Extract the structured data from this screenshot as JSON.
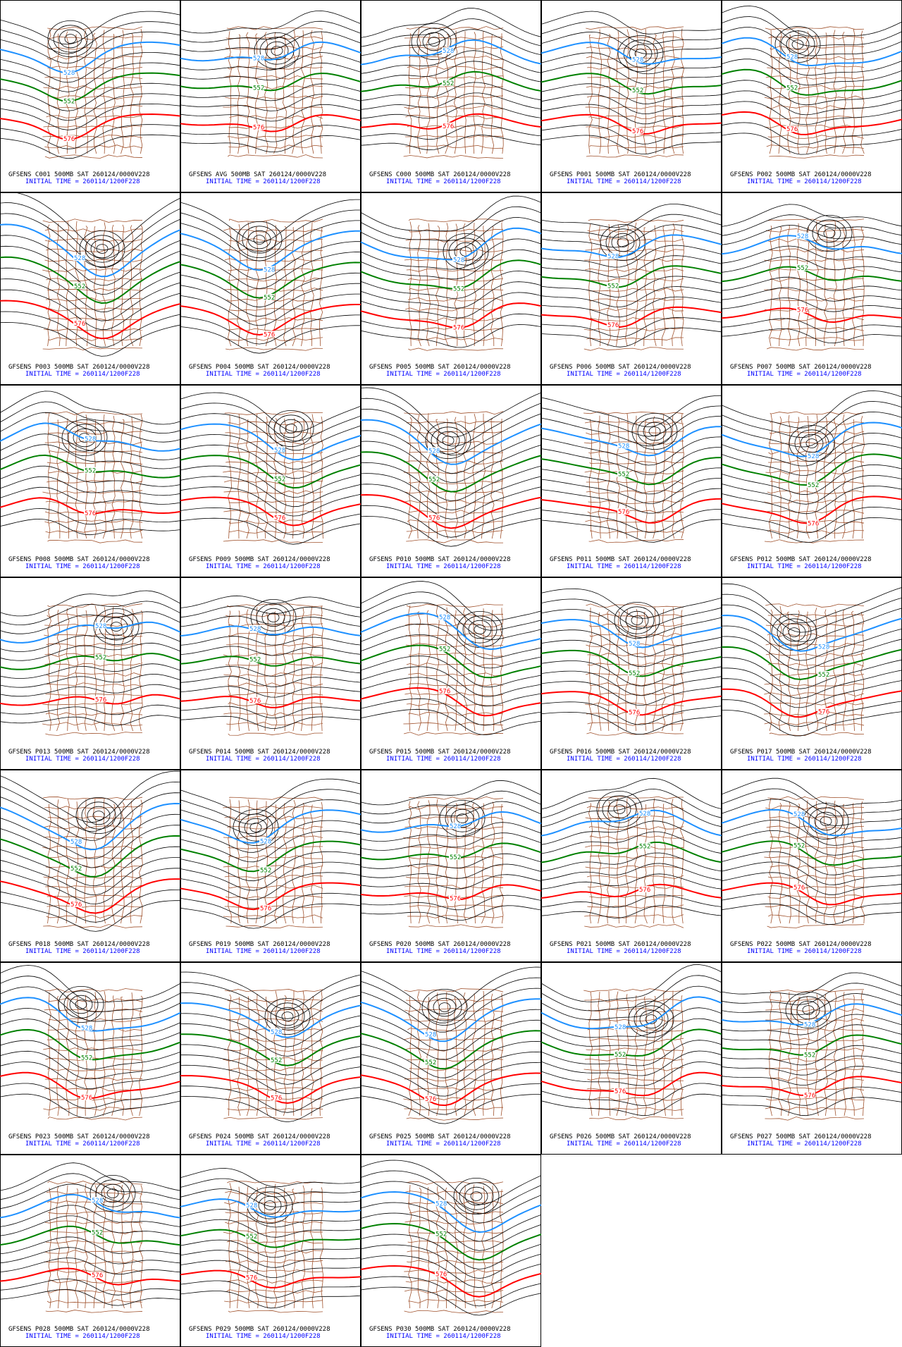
{
  "panels": [
    {
      "title": "GFSENS C001 500MB SAT 260124/0000V228",
      "init": "INITIAL TIME = 260114/1200F228",
      "contours": [
        "528",
        "552",
        "576"
      ]
    },
    {
      "title": "GFSENS AVG 500MB SAT 260124/0000V228",
      "init": "INITIAL TIME = 260114/1200F228",
      "contours": [
        "528",
        "552",
        "576"
      ]
    },
    {
      "title": "GFSENS C000 500MB SAT 260124/0000V228",
      "init": "INITIAL TIME = 260114/1200F228",
      "contours": [
        "528",
        "552",
        "576"
      ]
    },
    {
      "title": "GFSENS P001 500MB SAT 260124/0000V228",
      "init": "INITIAL TIME = 260114/1200F228",
      "contours": [
        "528",
        "552",
        "576"
      ]
    },
    {
      "title": "GFSENS P002 500MB SAT 260124/0000V228",
      "init": "INITIAL TIME = 260114/1200F228",
      "contours": [
        "528",
        "552",
        "576"
      ]
    },
    {
      "title": "GFSENS P003 500MB SAT 260124/0000V228",
      "init": "INITIAL TIME = 260114/1200F228",
      "contours": [
        "528",
        "552",
        "576"
      ]
    },
    {
      "title": "GFSENS P004 500MB SAT 260124/0000V228",
      "init": "INITIAL TIME = 260114/1200F228",
      "contours": [
        "528",
        "552",
        "576"
      ]
    },
    {
      "title": "GFSENS P005 500MB SAT 260124/0000V228",
      "init": "INITIAL TIME = 260114/1200F228",
      "contours": [
        "528",
        "552",
        "576"
      ]
    },
    {
      "title": "GFSENS P006 500MB SAT 260124/0000V228",
      "init": "INITIAL TIME = 260114/1200F228",
      "contours": [
        "528",
        "552",
        "576"
      ]
    },
    {
      "title": "GFSENS P007 500MB SAT 260124/0000V228",
      "init": "INITIAL TIME = 260114/1200F228",
      "contours": [
        "528",
        "552",
        "576"
      ]
    },
    {
      "title": "GFSENS P008 500MB SAT 260124/0000V228",
      "init": "INITIAL TIME = 260114/1200F228",
      "contours": [
        "528",
        "552",
        "576"
      ]
    },
    {
      "title": "GFSENS P009 500MB SAT 260124/0000V228",
      "init": "INITIAL TIME = 260114/1200F228",
      "contours": [
        "528",
        "552",
        "576"
      ]
    },
    {
      "title": "GFSENS P010 500MB SAT 260124/0000V228",
      "init": "INITIAL TIME = 260114/1200F228",
      "contours": [
        "528",
        "552",
        "576"
      ]
    },
    {
      "title": "GFSENS P011 500MB SAT 260124/0000V228",
      "init": "INITIAL TIME = 260114/1200F228",
      "contours": [
        "528",
        "552",
        "576"
      ]
    },
    {
      "title": "GFSENS P012 500MB SAT 260124/0000V228",
      "init": "INITIAL TIME = 260114/1200F228",
      "contours": [
        "528",
        "552",
        "576"
      ]
    },
    {
      "title": "GFSENS P013 500MB SAT 260124/0000V228",
      "init": "INITIAL TIME = 260114/1200F228",
      "contours": [
        "528",
        "552",
        "576"
      ]
    },
    {
      "title": "GFSENS P014 500MB SAT 260124/0000V228",
      "init": "INITIAL TIME = 260114/1200F228",
      "contours": [
        "528",
        "552",
        "576"
      ]
    },
    {
      "title": "GFSENS P015 500MB SAT 260124/0000V228",
      "init": "INITIAL TIME = 260114/1200F228",
      "contours": [
        "528",
        "552",
        "576"
      ]
    },
    {
      "title": "GFSENS P016 500MB SAT 260124/0000V228",
      "init": "INITIAL TIME = 260114/1200F228",
      "contours": [
        "528",
        "552",
        "576"
      ]
    },
    {
      "title": "GFSENS P017 500MB SAT 260124/0000V228",
      "init": "INITIAL TIME = 260114/1200F228",
      "contours": [
        "528",
        "552",
        "576"
      ]
    },
    {
      "title": "GFSENS P018 500MB SAT 260124/0000V228",
      "init": "INITIAL TIME = 260114/1200F228",
      "contours": [
        "528",
        "552",
        "576"
      ]
    },
    {
      "title": "GFSENS P019 500MB SAT 260124/0000V228",
      "init": "INITIAL TIME = 260114/1200F228",
      "contours": [
        "528",
        "552",
        "576"
      ]
    },
    {
      "title": "GFSENS P020 500MB SAT 260124/0000V228",
      "init": "INITIAL TIME = 260114/1200F228",
      "contours": [
        "528",
        "552",
        "576"
      ]
    },
    {
      "title": "GFSENS P021 500MB SAT 260124/0000V228",
      "init": "INITIAL TIME = 260114/1200F228",
      "contours": [
        "528",
        "552",
        "576"
      ]
    },
    {
      "title": "GFSENS P022 500MB SAT 260124/0000V228",
      "init": "INITIAL TIME = 260114/1200F228",
      "contours": [
        "528",
        "552",
        "576"
      ]
    },
    {
      "title": "GFSENS P023 500MB SAT 260124/0000V228",
      "init": "INITIAL TIME = 260114/1200F228",
      "contours": [
        "528",
        "552",
        "576"
      ]
    },
    {
      "title": "GFSENS P024 500MB SAT 260124/0000V228",
      "init": "INITIAL TIME = 260114/1200F228",
      "contours": [
        "528",
        "552",
        "576"
      ]
    },
    {
      "title": "GFSENS P025 500MB SAT 260124/0000V228",
      "init": "INITIAL TIME = 260114/1200F228",
      "contours": [
        "528",
        "552",
        "576"
      ]
    },
    {
      "title": "GFSENS P026 500MB SAT 260124/0000V228",
      "init": "INITIAL TIME = 260114/1200F228",
      "contours": [
        "528",
        "552",
        "576"
      ]
    },
    {
      "title": "GFSENS P027 500MB SAT 260124/0000V228",
      "init": "INITIAL TIME = 260114/1200F228",
      "contours": [
        "528",
        "552",
        "576"
      ]
    },
    {
      "title": "GFSENS P028 500MB SAT 260124/0000V228",
      "init": "INITIAL TIME = 260114/1200F228",
      "contours": [
        "528",
        "552",
        "576"
      ]
    },
    {
      "title": "GFSENS P029 500MB SAT 260124/0000V228",
      "init": "INITIAL TIME = 260114/1200F228",
      "contours": [
        "528",
        "552",
        "576"
      ]
    },
    {
      "title": "GFSENS P030 500MB SAT 260124/0000V228",
      "init": "INITIAL TIME = 260114/1200F228",
      "contours": [
        "528",
        "552",
        "576"
      ]
    }
  ]
}
